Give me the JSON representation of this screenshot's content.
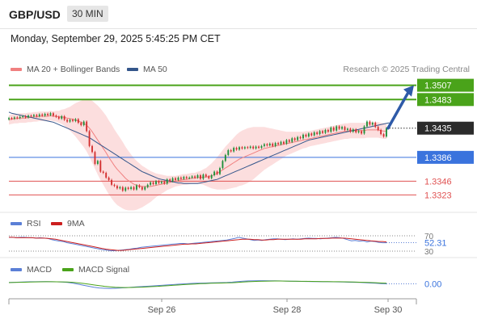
{
  "header": {
    "pair": "GBP/USD",
    "timeframe": "30 MIN",
    "datetime": "Monday, September 29, 2025 5:45:25 PM CET"
  },
  "legend": {
    "ma20": "MA 20 + Bollinger Bands",
    "ma50": "MA 50",
    "credit": "Research © 2025 Trading Central",
    "rsi": "RSI",
    "rsi_ma": "9MA",
    "macd": "MACD",
    "macd_signal": "MACD Signal"
  },
  "colors": {
    "up": "#1f8f3a",
    "down": "#d32f2f",
    "ma20": "#f08080",
    "ma50": "#34568b",
    "band": "#fbd3d3",
    "resistance": "#4aa31a",
    "support": "#e05252",
    "pivot": "#3a73dd",
    "arrow": "#2e5aa8"
  },
  "chart_data": [
    {
      "type": "candlestick",
      "title": "GBP/USD",
      "x_labels": [
        "Sep 26",
        "Sep 28",
        "Sep 30"
      ],
      "ylim": [
        1.3295,
        1.352
      ],
      "close": [
        1.3452,
        1.3451,
        1.3453,
        1.3452,
        1.3454,
        1.3455,
        1.3453,
        1.3456,
        1.3455,
        1.3457,
        1.3455,
        1.3458,
        1.3456,
        1.3459,
        1.3457,
        1.346,
        1.3456,
        1.3454,
        1.3451,
        1.3455,
        1.3449,
        1.3446,
        1.3449,
        1.3447,
        1.345,
        1.3444,
        1.344,
        1.3446,
        1.343,
        1.3405,
        1.3395,
        1.3375,
        1.338,
        1.3362,
        1.336,
        1.3352,
        1.3348,
        1.334,
        1.3338,
        1.3334,
        1.3336,
        1.333,
        1.3335,
        1.3333,
        1.3336,
        1.3332,
        1.3339,
        1.3336,
        1.3332,
        1.3336,
        1.334,
        1.3344,
        1.3341,
        1.3346,
        1.3343,
        1.3345,
        1.3342,
        1.3349,
        1.3346,
        1.3351,
        1.3348,
        1.3352,
        1.335,
        1.3353,
        1.3351,
        1.3352,
        1.3354,
        1.3352,
        1.3356,
        1.335,
        1.3357,
        1.3354,
        1.3351,
        1.3356,
        1.3362,
        1.3358,
        1.3368,
        1.338,
        1.339,
        1.3398,
        1.3396,
        1.3402,
        1.3399,
        1.3403,
        1.3401,
        1.3403,
        1.3402,
        1.3404,
        1.3401,
        1.3404,
        1.3402,
        1.3405,
        1.3408,
        1.3406,
        1.3409,
        1.3405,
        1.341,
        1.3408,
        1.3412,
        1.3409,
        1.3415,
        1.3412,
        1.3418,
        1.3415,
        1.342,
        1.3418,
        1.3424,
        1.3421,
        1.3426,
        1.3423,
        1.3428,
        1.3425,
        1.343,
        1.3427,
        1.3432,
        1.3429,
        1.3436,
        1.3431,
        1.3438,
        1.3434,
        1.3437,
        1.3432,
        1.3434,
        1.3429,
        1.3433,
        1.3428,
        1.343,
        1.3426,
        1.3438,
        1.3446,
        1.3441,
        1.3444,
        1.3437,
        1.3432,
        1.3425,
        1.3421,
        1.3435
      ],
      "ma20": [
        1.3449,
        1.345,
        1.3451,
        1.3451,
        1.3452,
        1.3452,
        1.3452,
        1.3453,
        1.3453,
        1.3454,
        1.3454,
        1.3455,
        1.3455,
        1.3455,
        1.3455,
        1.3456,
        1.3455,
        1.3455,
        1.3454,
        1.3454,
        1.3453,
        1.3452,
        1.3451,
        1.345,
        1.3449,
        1.3447,
        1.3445,
        1.3443,
        1.344,
        1.3435,
        1.3429,
        1.3422,
        1.3415,
        1.3408,
        1.3401,
        1.3394,
        1.3386,
        1.3379,
        1.3372,
        1.3366,
        1.3361,
        1.3356,
        1.3351,
        1.3347,
        1.3344,
        1.3341,
        1.3339,
        1.3338,
        1.3337,
        1.3337,
        1.3337,
        1.3337,
        1.3338,
        1.3339,
        1.334,
        1.3341,
        1.3342,
        1.3343,
        1.3344,
        1.3345,
        1.3346,
        1.3347,
        1.3348,
        1.3349,
        1.3349,
        1.335,
        1.3351,
        1.3351,
        1.3352,
        1.3352,
        1.3353,
        1.3353,
        1.3354,
        1.3355,
        1.3357,
        1.3359,
        1.3362,
        1.3365,
        1.3368,
        1.3371,
        1.3374,
        1.3377,
        1.338,
        1.3383,
        1.3385,
        1.3387,
        1.3389,
        1.3391,
        1.3393,
        1.3395,
        1.3397,
        1.3399,
        1.3401,
        1.3402,
        1.3403,
        1.3404,
        1.3405,
        1.3406,
        1.3407,
        1.3408,
        1.3409,
        1.341,
        1.3411,
        1.3412,
        1.3413,
        1.3414,
        1.3415,
        1.3416,
        1.3417,
        1.3418,
        1.3419,
        1.342,
        1.3421,
        1.3422,
        1.3423,
        1.3424,
        1.3425,
        1.3426,
        1.3427,
        1.3428,
        1.3429,
        1.343,
        1.343,
        1.3431,
        1.3431,
        1.3431,
        1.3431,
        1.3431,
        1.3431,
        1.3432,
        1.3432,
        1.3432,
        1.3432,
        1.3432,
        1.3431,
        1.343,
        1.343
      ],
      "ma50": [
        1.3462,
        1.346,
        1.3459,
        1.3458,
        1.3457,
        1.3456,
        1.3455,
        1.3454,
        1.3453,
        1.3452,
        1.3451,
        1.345,
        1.3449,
        1.3448,
        1.3447,
        1.3446,
        1.3445,
        1.3443,
        1.3441,
        1.3439,
        1.3437,
        1.3435,
        1.3433,
        1.3431,
        1.3429,
        1.3427,
        1.3425,
        1.3423,
        1.3421,
        1.3419,
        1.3416,
        1.3413,
        1.341,
        1.3407,
        1.3404,
        1.3401,
        1.3398,
        1.3395,
        1.3392,
        1.3389,
        1.3386,
        1.3383,
        1.338,
        1.3377,
        1.3374,
        1.3371,
        1.3368,
        1.3365,
        1.3362,
        1.336,
        1.3358,
        1.3356,
        1.3354,
        1.3352,
        1.335,
        1.3349,
        1.3348,
        1.3347,
        1.3346,
        1.3345,
        1.3344,
        1.3343,
        1.3343,
        1.3342,
        1.3342,
        1.3342,
        1.3342,
        1.3342,
        1.3342,
        1.3343,
        1.3344,
        1.3345,
        1.3346,
        1.3347,
        1.3348,
        1.3349,
        1.3351,
        1.3353,
        1.3355,
        1.3357,
        1.3359,
        1.3361,
        1.3363,
        1.3365,
        1.3367,
        1.3369,
        1.3371,
        1.3373,
        1.3375,
        1.3377,
        1.3379,
        1.3381,
        1.3383,
        1.3385,
        1.3387,
        1.3389,
        1.3391,
        1.3393,
        1.3395,
        1.3397,
        1.3399,
        1.3401,
        1.3403,
        1.3405,
        1.3407,
        1.3409,
        1.3411,
        1.3413,
        1.3415,
        1.3416,
        1.3417,
        1.3418,
        1.3419,
        1.342,
        1.3421,
        1.3422,
        1.3423,
        1.3424,
        1.3425,
        1.3426,
        1.3427,
        1.3428,
        1.3429,
        1.343,
        1.3431,
        1.3432,
        1.3433,
        1.3434,
        1.3435,
        1.3436,
        1.3437,
        1.3438,
        1.3439,
        1.344,
        1.3441,
        1.3442,
        1.3443,
        1.3444
      ],
      "band_width": [
        0.0008,
        0.0008,
        0.0008,
        0.0008,
        0.0008,
        0.0008,
        0.0008,
        0.0008,
        0.0008,
        0.0008,
        0.0008,
        0.0008,
        0.0008,
        0.0008,
        0.0008,
        0.0008,
        0.0008,
        0.0009,
        0.001,
        0.0012,
        0.0014,
        0.0017,
        0.002,
        0.0024,
        0.0028,
        0.0032,
        0.0036,
        0.004,
        0.0044,
        0.0048,
        0.0052,
        0.0055,
        0.0058,
        0.006,
        0.0061,
        0.0062,
        0.0062,
        0.0062,
        0.0061,
        0.006,
        0.0058,
        0.0056,
        0.0053,
        0.005,
        0.0047,
        0.0044,
        0.0041,
        0.0038,
        0.0035,
        0.0032,
        0.0029,
        0.0026,
        0.0023,
        0.002,
        0.0018,
        0.0016,
        0.0014,
        0.0012,
        0.0011,
        0.001,
        0.0009,
        0.0009,
        0.0009,
        0.0009,
        0.0009,
        0.0009,
        0.0009,
        0.0009,
        0.001,
        0.0011,
        0.0013,
        0.0015,
        0.0018,
        0.0021,
        0.0024,
        0.0027,
        0.003,
        0.0033,
        0.0036,
        0.0038,
        0.004,
        0.0042,
        0.0044,
        0.0045,
        0.0046,
        0.0046,
        0.0046,
        0.0045,
        0.0044,
        0.0042,
        0.004,
        0.0038,
        0.0036,
        0.0034,
        0.0032,
        0.003,
        0.0028,
        0.0026,
        0.0024,
        0.0022,
        0.002,
        0.0019,
        0.0018,
        0.0017,
        0.0016,
        0.0015,
        0.0014,
        0.0014,
        0.0013,
        0.0013,
        0.0013,
        0.0013,
        0.0013,
        0.0013,
        0.0013,
        0.0013,
        0.0013,
        0.0013,
        0.0013,
        0.0013,
        0.0013,
        0.0013,
        0.0013,
        0.0013,
        0.0013,
        0.0013,
        0.0013,
        0.0013,
        0.0013,
        0.0013,
        0.0013,
        0.0013,
        0.0013,
        0.0013,
        0.0013,
        0.0013,
        0.0013,
        0.0013
      ],
      "levels": [
        {
          "value": 1.3507,
          "label": "1.3507",
          "kind": "resistance"
        },
        {
          "value": 1.3483,
          "label": "1.3483",
          "kind": "resistance"
        },
        {
          "value": 1.3435,
          "label": "1.3435",
          "kind": "last"
        },
        {
          "value": 1.3386,
          "label": "1.3386",
          "kind": "pivot"
        },
        {
          "value": 1.3346,
          "label": "1.3346",
          "kind": "support"
        },
        {
          "value": 1.3323,
          "label": "1.3323",
          "kind": "support"
        }
      ],
      "target_arrow": {
        "from": 1.3435,
        "to": 1.3507
      }
    },
    {
      "type": "line",
      "title": "RSI",
      "ylim": [
        30,
        70
      ],
      "ticks": [
        "70",
        "30"
      ],
      "last_label": "52.31",
      "series": [
        {
          "name": "RSI",
          "values": [
            66,
            66,
            65,
            66,
            66,
            65,
            65,
            64,
            65,
            64,
            63,
            60,
            58,
            56,
            55,
            52,
            50,
            48,
            46,
            44,
            42,
            40,
            38,
            36,
            34,
            33,
            31,
            31,
            32,
            33,
            34,
            35,
            37,
            38,
            40,
            41,
            42,
            43,
            44,
            45,
            46,
            47,
            48,
            49,
            50,
            50,
            49,
            50,
            51,
            52,
            53,
            54,
            55,
            56,
            57,
            58,
            59,
            61,
            63,
            66,
            64,
            62,
            60,
            58,
            59,
            58,
            60,
            61,
            62,
            62,
            61,
            60,
            61,
            62,
            61,
            62,
            63,
            64,
            63,
            63,
            62,
            63,
            64,
            65,
            66,
            65,
            63,
            60,
            57,
            58,
            56,
            57,
            54,
            56,
            55,
            53,
            52,
            52
          ]
        },
        {
          "name": "9MA",
          "values": [
            66,
            66,
            65,
            65,
            65,
            65,
            65,
            64,
            64,
            64,
            63,
            62,
            61,
            59,
            57,
            55,
            53,
            51,
            49,
            47,
            45,
            43,
            41,
            39,
            37,
            35,
            34,
            33,
            32,
            32,
            33,
            34,
            35,
            36,
            37,
            38,
            39,
            40,
            41,
            42,
            43,
            44,
            45,
            46,
            47,
            48,
            48,
            49,
            49,
            50,
            51,
            52,
            53,
            54,
            55,
            56,
            57,
            58,
            59,
            60,
            61,
            61,
            61,
            60,
            60,
            59,
            59,
            60,
            60,
            61,
            61,
            61,
            61,
            61,
            61,
            61,
            62,
            62,
            62,
            62,
            63,
            63,
            63,
            64,
            64,
            64,
            64,
            63,
            62,
            61,
            60,
            59,
            58,
            57,
            56,
            55,
            55,
            54
          ]
        }
      ]
    },
    {
      "type": "line",
      "title": "MACD",
      "ylim": [
        -10,
        10
      ],
      "last_label": "0.00",
      "series": [
        {
          "name": "MACD",
          "values": [
            2,
            2.2,
            2.5,
            2.8,
            3,
            3.1,
            3.2,
            3.2,
            3.1,
            2.9,
            2.6,
            2,
            1,
            -0.5,
            -2,
            -3.5,
            -5,
            -6,
            -6.5,
            -6.8,
            -6.5,
            -6,
            -5.5,
            -5,
            -4.5,
            -4,
            -3.5,
            -3,
            -2.5,
            -2,
            -1.5,
            -1,
            -0.5,
            0,
            0.5,
            0.8,
            1,
            1.2,
            1.4,
            1.6,
            1.8,
            2,
            2.5,
            3.2,
            3.8,
            4.2,
            4.5,
            4.6,
            4.6,
            4.5,
            4.4,
            4.2,
            4,
            3.8,
            3.6,
            3.5,
            3.4,
            3.3,
            3.2,
            3.1,
            3,
            2.9,
            2.8,
            2.6,
            2.4,
            2.2,
            2,
            1.6,
            1.2,
            0.8,
            0.4,
            0
          ]
        },
        {
          "name": "MACD Signal",
          "values": [
            1.8,
            2,
            2.2,
            2.4,
            2.6,
            2.8,
            2.9,
            3,
            3,
            2.9,
            2.8,
            2.6,
            2.2,
            1.5,
            0.6,
            -0.5,
            -1.6,
            -2.7,
            -3.6,
            -4.4,
            -5,
            -5.3,
            -5.4,
            -5.3,
            -5.1,
            -4.8,
            -4.4,
            -4,
            -3.6,
            -3.1,
            -2.6,
            -2.1,
            -1.6,
            -1.1,
            -0.6,
            -0.2,
            0.2,
            0.5,
            0.8,
            1,
            1.2,
            1.4,
            1.7,
            2.1,
            2.6,
            3,
            3.4,
            3.7,
            3.9,
            4,
            4.1,
            4.1,
            4,
            3.9,
            3.8,
            3.7,
            3.6,
            3.5,
            3.4,
            3.3,
            3.2,
            3.1,
            3,
            2.9,
            2.8,
            2.6,
            2.4,
            2.2,
            1.9,
            1.6,
            1.2,
            0.8
          ]
        }
      ]
    }
  ]
}
